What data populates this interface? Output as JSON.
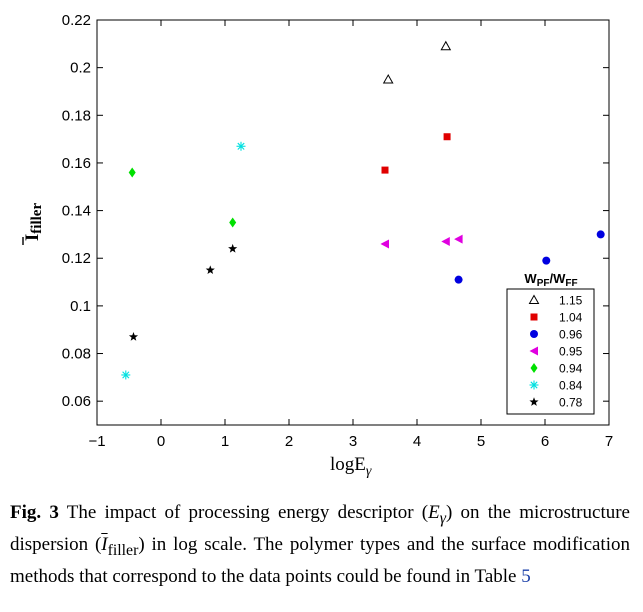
{
  "chart_data": {
    "type": "scatter",
    "xlabel": "logE",
    "xlabel_sub": "γ",
    "ylabel": "I",
    "ylabel_sub": "filler",
    "xlim": [
      -1,
      7
    ],
    "ylim": [
      0.05,
      0.22
    ],
    "xticks": [
      -1,
      0,
      1,
      2,
      3,
      4,
      5,
      6,
      7
    ],
    "xtick_labels": [
      "−1",
      "0",
      "1",
      "2",
      "3",
      "4",
      "5",
      "6",
      "7"
    ],
    "yticks": [
      0.06,
      0.08,
      0.1,
      0.12,
      0.14,
      0.16,
      0.18,
      0.2,
      0.22
    ],
    "ytick_labels": [
      "0.06",
      "0.08",
      "0.1",
      "0.12",
      "0.14",
      "0.16",
      "0.18",
      "0.2",
      "0.22"
    ],
    "grid": false,
    "legend": {
      "placement": "bottom-right",
      "title_main_1": "W",
      "title_sub_1": "PF",
      "title_sep": "/W",
      "title_sub_2": "FF"
    },
    "series": [
      {
        "name": "1.15",
        "marker": "triangle-up-open",
        "color": "#000000",
        "points": [
          [
            3.55,
            0.195
          ],
          [
            4.45,
            0.209
          ]
        ]
      },
      {
        "name": "1.04",
        "marker": "square",
        "color": "#e00000",
        "points": [
          [
            3.5,
            0.157
          ],
          [
            4.47,
            0.171
          ]
        ]
      },
      {
        "name": "0.96",
        "marker": "circle",
        "color": "#0000e0",
        "points": [
          [
            4.65,
            0.111
          ],
          [
            6.02,
            0.119
          ],
          [
            6.87,
            0.13
          ]
        ]
      },
      {
        "name": "0.95",
        "marker": "triangle-left",
        "color": "#e000e0",
        "points": [
          [
            3.5,
            0.126
          ],
          [
            4.45,
            0.127
          ],
          [
            4.65,
            0.128
          ]
        ]
      },
      {
        "name": "0.94",
        "marker": "diamond",
        "color": "#00e000",
        "points": [
          [
            -0.45,
            0.156
          ],
          [
            1.12,
            0.135
          ]
        ]
      },
      {
        "name": "0.84",
        "marker": "plus-star",
        "color": "#00e0e0",
        "points": [
          [
            -0.55,
            0.071
          ],
          [
            1.25,
            0.167
          ]
        ]
      },
      {
        "name": "0.78",
        "marker": "star",
        "color": "#000000",
        "points": [
          [
            -0.43,
            0.087
          ],
          [
            0.77,
            0.115
          ],
          [
            1.12,
            0.124
          ]
        ]
      }
    ]
  },
  "caption": {
    "label": "Fig. 3",
    "text_1": "The impact of processing energy descriptor (",
    "math_1": "E",
    "math_1_sub": "γ",
    "text_2": ") on the microstructure dispersion (",
    "math_2": "I",
    "math_2_sub": "filler",
    "text_3": ") in log scale. The polymer types and the surface modification methods that correspond to the data points could be found in Table ",
    "table_ref": "5"
  }
}
